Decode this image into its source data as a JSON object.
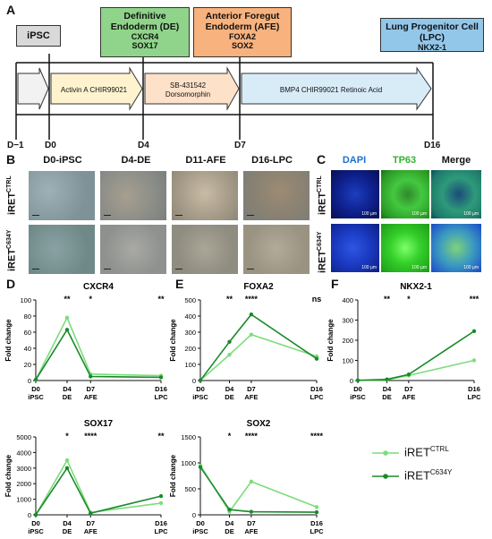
{
  "panel_labels": {
    "a": "A",
    "b": "B",
    "c": "C",
    "d": "D",
    "e": "E",
    "f": "F"
  },
  "timeline": {
    "ipsc": "iPSC",
    "de": {
      "title1": "Definitive",
      "title2": "Endoderm (DE)",
      "m1": "CXCR4",
      "m2": "SOX17",
      "color": "#8fd48a"
    },
    "afe": {
      "title1": "Anterior Foregut",
      "title2": "Endoderm (AFE)",
      "m1": "FOXA2",
      "m2": "SOX2",
      "color": "#f8b27e"
    },
    "lpc": {
      "title1": "Lung Progenitor Cell",
      "title2": "(LPC)",
      "m1": "NKX2-1",
      "color": "#93c7ea"
    },
    "treat1": "Activin A CHIR99021",
    "treat2a": "SB-431542",
    "treat2b": "Dorsomorphin",
    "treat3": "BMP4 CHIR99021 Retinoic Acid",
    "days": [
      "D−1",
      "D0",
      "D4",
      "D7",
      "D16"
    ]
  },
  "panel_b": {
    "cols": [
      "D0-iPSC",
      "D4-DE",
      "D11-AFE",
      "D16-LPC"
    ],
    "row1_base": "iRET",
    "row1_sup": "CTRL",
    "row2_base": "iRET",
    "row2_sup": "C634Y"
  },
  "panel_c": {
    "cols": [
      "DAPI",
      "TP63",
      "Merge"
    ],
    "col_colors": [
      "#1f6fd0",
      "#2fb52f",
      "#111111"
    ],
    "scale": "100 µm"
  },
  "legend": {
    "ctrl_base": "iRET",
    "ctrl_sup": "CTRL",
    "ctrl_color": "#7ddc7d",
    "mut_base": "iRET",
    "mut_sup": "C634Y",
    "mut_color": "#1a8a2a"
  },
  "chart_data": [
    {
      "type": "line",
      "title": "CXCR4",
      "ylabel": "Fold change",
      "ylim": [
        0,
        100
      ],
      "yticks": [
        0,
        20,
        40,
        60,
        80,
        100
      ],
      "x": [
        "D0\niPSC",
        "D4\nDE",
        "D7\nAFE",
        "D16\nLPC"
      ],
      "xpos": [
        0,
        4,
        7,
        16
      ],
      "sig": [
        "",
        "**",
        "*",
        "**"
      ],
      "series": [
        {
          "name": "iRET CTRL",
          "values": [
            1,
            78,
            8,
            6
          ]
        },
        {
          "name": "iRET C634Y",
          "values": [
            1,
            63,
            5,
            4
          ]
        }
      ]
    },
    {
      "type": "line",
      "title": "FOXA2",
      "ylabel": "Fold change",
      "ylim": [
        0,
        500
      ],
      "yticks": [
        0,
        100,
        200,
        300,
        400,
        500
      ],
      "x": [
        "D0\niPSC",
        "D4\nDE",
        "D7\nAFE",
        "D16\nLPC"
      ],
      "xpos": [
        0,
        4,
        7,
        16
      ],
      "sig": [
        "",
        "**",
        "****",
        "ns"
      ],
      "series": [
        {
          "name": "iRET CTRL",
          "values": [
            1,
            160,
            285,
            150
          ]
        },
        {
          "name": "iRET C634Y",
          "values": [
            1,
            240,
            410,
            135
          ]
        }
      ]
    },
    {
      "type": "line",
      "title": "NKX2-1",
      "ylabel": "Fold change",
      "ylim": [
        0,
        400
      ],
      "yticks": [
        0,
        100,
        200,
        300,
        400
      ],
      "x": [
        "D0\niPSC",
        "D4\nDE",
        "D7\nAFE",
        "D16\nLPC"
      ],
      "xpos": [
        0,
        4,
        7,
        16
      ],
      "sig": [
        "",
        "**",
        "*",
        "***"
      ],
      "series": [
        {
          "name": "iRET CTRL",
          "values": [
            1,
            3,
            25,
            100
          ]
        },
        {
          "name": "iRET C634Y",
          "values": [
            1,
            6,
            30,
            245
          ]
        }
      ]
    },
    {
      "type": "line",
      "title": "SOX17",
      "ylabel": "Fold change",
      "ylim": [
        0,
        5000
      ],
      "yticks": [
        0,
        1000,
        2000,
        3000,
        4000,
        5000
      ],
      "x": [
        "D0\niPSC",
        "D4\nDE",
        "D7\nAFE",
        "D16\nLPC"
      ],
      "xpos": [
        0,
        4,
        7,
        16
      ],
      "sig": [
        "",
        "*",
        "****",
        "**"
      ],
      "series": [
        {
          "name": "iRET CTRL",
          "values": [
            1,
            3500,
            150,
            750
          ]
        },
        {
          "name": "iRET C634Y",
          "values": [
            1,
            3000,
            100,
            1200
          ]
        }
      ]
    },
    {
      "type": "line",
      "title": "SOX2",
      "ylabel": "Fold change",
      "ylim": [
        0,
        1500
      ],
      "yticks": [
        0,
        500,
        1000,
        1500
      ],
      "x": [
        "D0\niPSC",
        "D4\nDE",
        "D7\nAFE",
        "D16\nLPC"
      ],
      "xpos": [
        0,
        4,
        7,
        16
      ],
      "sig": [
        "",
        "*",
        "****",
        "****"
      ],
      "series": [
        {
          "name": "iRET CTRL",
          "values": [
            950,
            60,
            640,
            150
          ]
        },
        {
          "name": "iRET C634Y",
          "values": [
            920,
            100,
            60,
            50
          ]
        }
      ]
    }
  ]
}
